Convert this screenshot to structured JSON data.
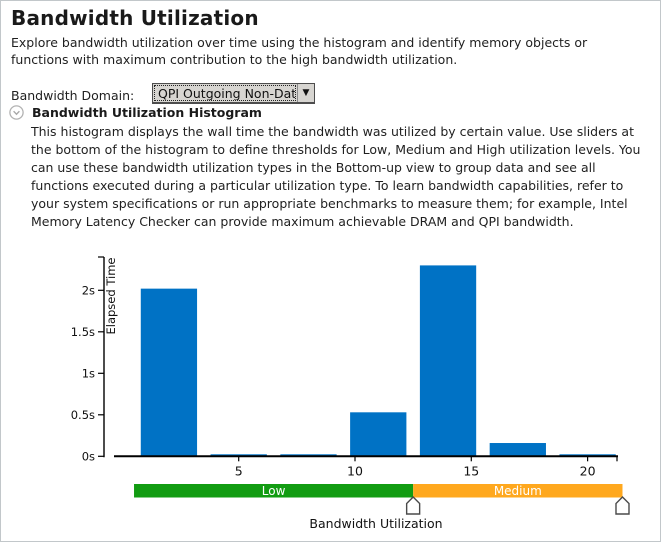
{
  "page": {
    "title": "Bandwidth Utilization",
    "intro": "Explore bandwidth utilization over time using the histogram and identify memory objects or functions with maximum contribution to the high bandwidth utilization.",
    "domain_label": "Bandwidth Domain:",
    "domain_value": "QPI Outgoing Non-Data, GB/sec",
    "dropdown_arrow_glyph": "▼",
    "section": {
      "title": "Bandwidth Utilization Histogram",
      "description": "This histogram displays the wall time the bandwidth was utilized by certain value. Use sliders at the bottom of the histogram to define thresholds for Low, Medium and High utilization levels. You can use these bandwidth utilization types in the Bottom-up view to group data and see all functions executed during a particular utilization type. To learn bandwidth capabilities, refer to your system specifications or run appropriate benchmarks to measure them; for example, Intel Memory Latency Checker can provide maximum achievable DRAM and QPI bandwidth."
    }
  },
  "chart_data": {
    "type": "bar",
    "title": "",
    "xlabel": "Bandwidth Utilization",
    "ylabel": "Elapsed Time",
    "xlim": [
      0.3,
      21.7
    ],
    "ylim": [
      0,
      2.4
    ],
    "grid": false,
    "bin_centers": [
      2,
      5,
      8,
      11,
      14,
      17,
      20
    ],
    "bin_width": 3,
    "bar_display_width": 2.42,
    "values_seconds": [
      2.02,
      0.02,
      0.02,
      0.53,
      2.3,
      0.16,
      0.02
    ],
    "x_ticks": [
      5,
      10,
      15,
      20
    ],
    "y_ticks": [
      {
        "value": 0,
        "label": "0s"
      },
      {
        "value": 0.5,
        "label": "0.5s"
      },
      {
        "value": 1,
        "label": "1s"
      },
      {
        "value": 1.5,
        "label": "1.5s"
      },
      {
        "value": 2,
        "label": "2s"
      }
    ],
    "series_color": "#0072c5",
    "thresholds": {
      "low_start": 0.5,
      "low_end": 12.5,
      "medium_end": 21.5,
      "zones": [
        {
          "label": "Low",
          "from": 0.5,
          "to": 12.5,
          "color": "#129c12"
        },
        {
          "label": "Medium",
          "from": 12.5,
          "to": 21.5,
          "color": "#ffa81e"
        }
      ]
    }
  },
  "colors": {
    "bar_blue": "#0072c5",
    "low_green": "#129c12",
    "medium_orange": "#ffa81e",
    "page_border": "#c2c7ca",
    "collapse_icon_gray": "#b2b2b2"
  }
}
